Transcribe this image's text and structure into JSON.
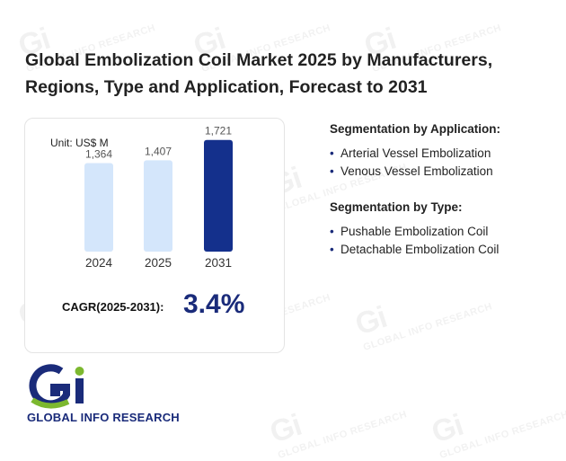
{
  "title": "Global Embolization Coil Market 2025 by Manufacturers, Regions, Type and Application, Forecast to 2031",
  "unit_label": "Unit: US$ M",
  "chart_data": {
    "type": "bar",
    "categories": [
      "2024",
      "2025",
      "2031"
    ],
    "values": [
      1364,
      1407,
      1721
    ],
    "value_labels": [
      "1,364",
      "1,407",
      "1,721"
    ],
    "colors": [
      "#d4e6fb",
      "#d4e6fb",
      "#14308c"
    ],
    "ylim": [
      0,
      1800
    ]
  },
  "cagr": {
    "label": "CAGR(2025-2031):",
    "value": "3.4%"
  },
  "segmentation": {
    "application": {
      "heading": "Segmentation by Application:",
      "items": [
        "Arterial Vessel Embolization",
        "Venous Vessel Embolization"
      ]
    },
    "type": {
      "heading": "Segmentation by Type:",
      "items": [
        "Pushable Embolization Coil",
        "Detachable Embolization Coil"
      ]
    }
  },
  "logo": {
    "text": "GLOBAL INFO RESEARCH",
    "brand_colors": {
      "blue": "#1a2b7a",
      "green": "#7cb82f"
    }
  },
  "watermark": {
    "glyph": "Gi",
    "text": "GLOBAL INFO RESEARCH"
  }
}
